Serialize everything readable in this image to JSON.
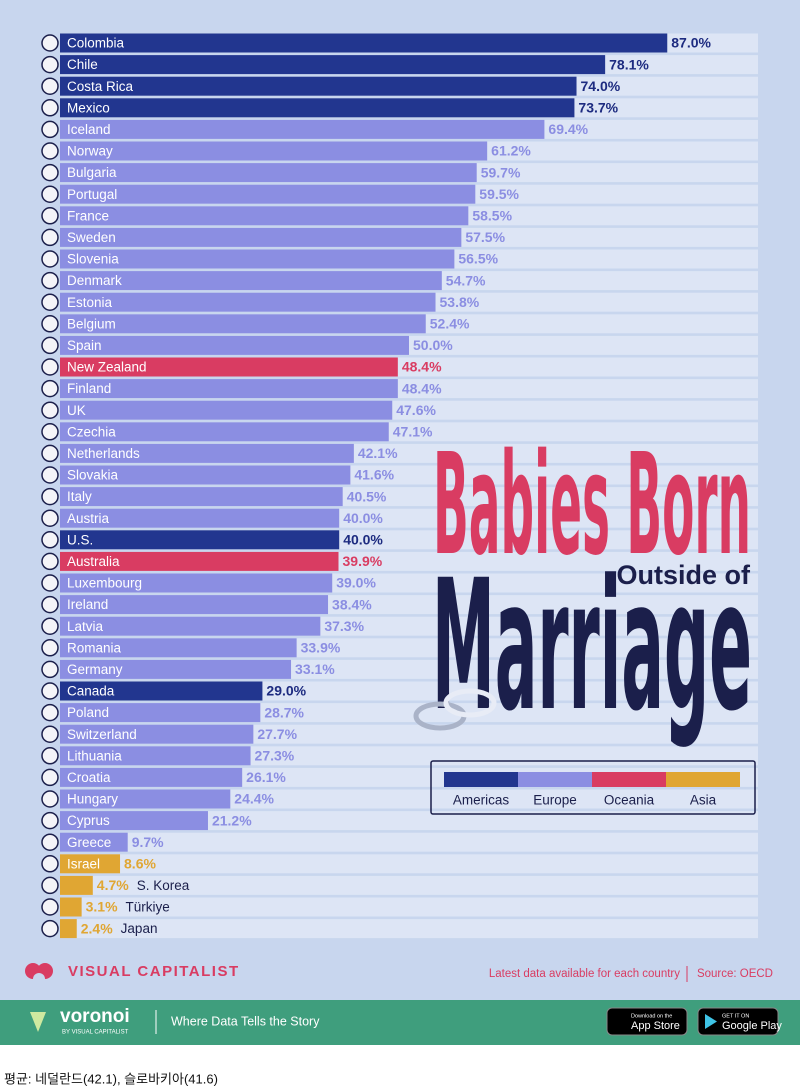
{
  "chart_data": {
    "type": "bar",
    "orientation": "horizontal",
    "title": "Babies Born",
    "title_line2": "Outside of",
    "title_line3": "Marriage",
    "categories": [
      "Colombia",
      "Chile",
      "Costa Rica",
      "Mexico",
      "Iceland",
      "Norway",
      "Bulgaria",
      "Portugal",
      "France",
      "Sweden",
      "Slovenia",
      "Denmark",
      "Estonia",
      "Belgium",
      "Spain",
      "New Zealand",
      "Finland",
      "UK",
      "Czechia",
      "Netherlands",
      "Slovakia",
      "Italy",
      "Austria",
      "U.S.",
      "Australia",
      "Luxembourg",
      "Ireland",
      "Latvia",
      "Romania",
      "Germany",
      "Canada",
      "Poland",
      "Switzerland",
      "Lithuania",
      "Croatia",
      "Hungary",
      "Cyprus",
      "Greece",
      "Israel",
      "S. Korea",
      "Türkiye",
      "Japan"
    ],
    "values": [
      87.0,
      78.1,
      74.0,
      73.7,
      69.4,
      61.2,
      59.7,
      59.5,
      58.5,
      57.5,
      56.5,
      54.7,
      53.8,
      52.4,
      50.0,
      48.4,
      48.4,
      47.6,
      47.1,
      42.1,
      41.6,
      40.5,
      40.0,
      40.0,
      39.9,
      39.0,
      38.4,
      37.3,
      33.9,
      33.1,
      29.0,
      28.7,
      27.7,
      27.3,
      26.1,
      24.4,
      21.2,
      9.7,
      8.6,
      4.7,
      3.1,
      2.4
    ],
    "value_labels": [
      "87.0%",
      "78.1%",
      "74.0%",
      "73.7%",
      "69.4%",
      "61.2%",
      "59.7%",
      "59.5%",
      "58.5%",
      "57.5%",
      "56.5%",
      "54.7%",
      "53.8%",
      "52.4%",
      "50.0%",
      "48.4%",
      "48.4%",
      "47.6%",
      "47.1%",
      "42.1%",
      "41.6%",
      "40.5%",
      "40.0%",
      "40.0%",
      "39.9%",
      "39.0%",
      "38.4%",
      "37.3%",
      "33.9%",
      "33.1%",
      "29.0%",
      "28.7%",
      "27.7%",
      "27.3%",
      "26.1%",
      "24.4%",
      "21.2%",
      "9.7%",
      "8.6%",
      "4.7%",
      "3.1%",
      "2.4%"
    ],
    "region": [
      "Americas",
      "Americas",
      "Americas",
      "Americas",
      "Europe",
      "Europe",
      "Europe",
      "Europe",
      "Europe",
      "Europe",
      "Europe",
      "Europe",
      "Europe",
      "Europe",
      "Europe",
      "Oceania",
      "Europe",
      "Europe",
      "Europe",
      "Europe",
      "Europe",
      "Europe",
      "Europe",
      "Americas",
      "Oceania",
      "Europe",
      "Europe",
      "Europe",
      "Europe",
      "Europe",
      "Americas",
      "Europe",
      "Europe",
      "Europe",
      "Europe",
      "Europe",
      "Europe",
      "Europe",
      "Asia",
      "Asia",
      "Asia",
      "Asia"
    ],
    "legend": [
      {
        "name": "Americas",
        "color": "#22368f"
      },
      {
        "name": "Europe",
        "color": "#8b8ee2"
      },
      {
        "name": "Oceania",
        "color": "#d93c62"
      },
      {
        "name": "Asia",
        "color": "#e0a633"
      }
    ],
    "xlim": [
      0,
      100
    ]
  },
  "footer": {
    "brand": "VISUAL CAPITALIST",
    "note": "Latest data available for each country",
    "source": "Source: OECD",
    "voronoi": "voronoi",
    "voronoi_sub": "BY VISUAL CAPITALIST",
    "tagline": "Where Data Tells the Story",
    "app_store_small": "Download on the",
    "app_store": "App Store",
    "play_small": "GET IT ON",
    "play": "Google Play"
  },
  "caption": "평균: 네덜란드(42.1), 슬로바키아(41.6)"
}
